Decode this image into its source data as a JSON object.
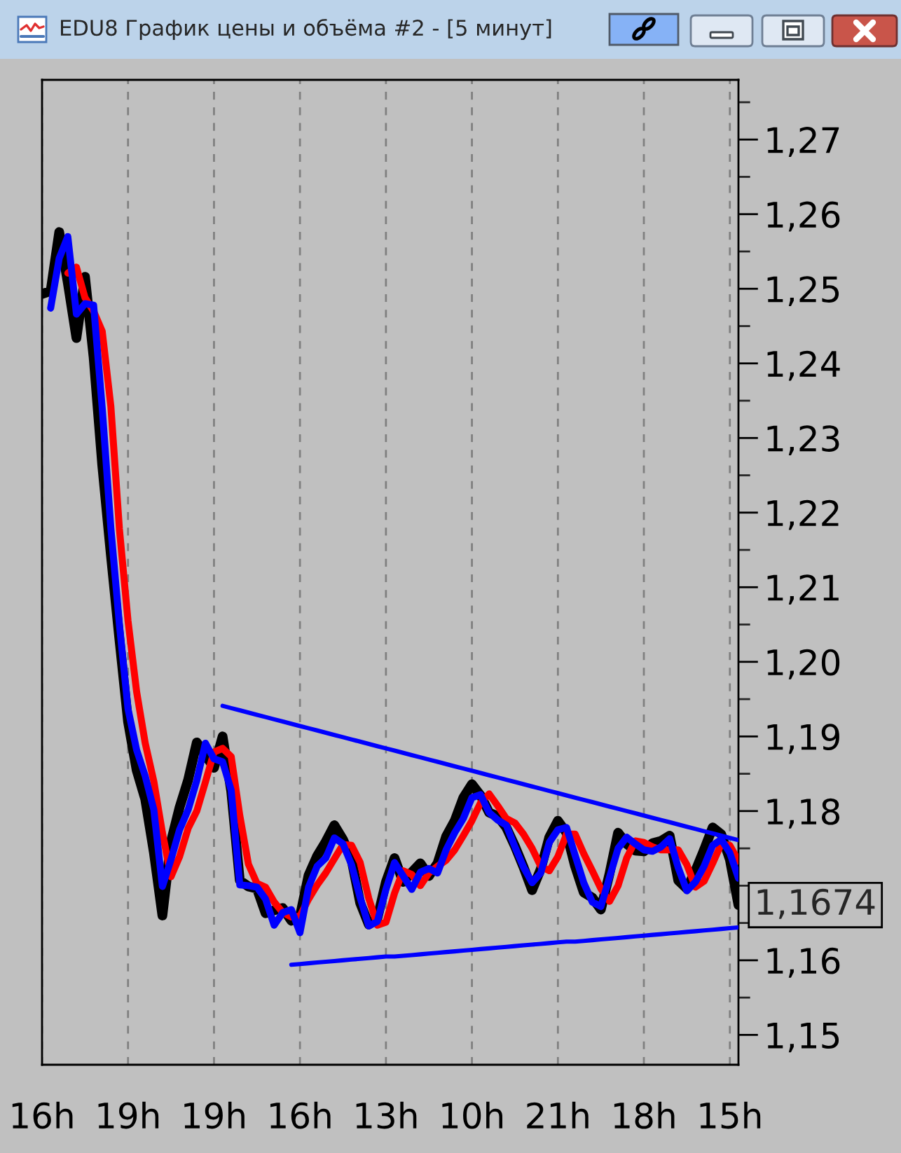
{
  "chart_data": {
    "type": "line",
    "title": "EDU8 График цены и объёма #2 - [5 минут]",
    "categories": [
      "16h",
      null,
      null,
      null,
      null,
      null,
      null,
      null,
      null,
      null,
      "19h",
      null,
      null,
      null,
      null,
      null,
      null,
      null,
      null,
      null,
      "19h",
      null,
      null,
      null,
      null,
      null,
      null,
      null,
      null,
      null,
      "16h",
      null,
      null,
      null,
      null,
      null,
      null,
      null,
      null,
      null,
      "13h",
      null,
      null,
      null,
      null,
      null,
      null,
      null,
      null,
      null,
      "10h",
      null,
      null,
      null,
      null,
      null,
      null,
      null,
      null,
      null,
      "21h",
      null,
      null,
      null,
      null,
      null,
      null,
      null,
      null,
      null,
      "18h",
      null,
      null,
      null,
      null,
      null,
      null,
      null,
      null,
      null,
      "15h",
      null
    ],
    "ylim": [
      1.146,
      1.278
    ],
    "yticks": [
      {
        "value": 1.15,
        "label": "1,15"
      },
      {
        "value": 1.155,
        "label": null
      },
      {
        "value": 1.16,
        "label": "1,16"
      },
      {
        "value": 1.165,
        "label": null
      },
      {
        "value": 1.17,
        "label": null
      },
      {
        "value": 1.175,
        "label": null
      },
      {
        "value": 1.18,
        "label": "1,18"
      },
      {
        "value": 1.185,
        "label": null
      },
      {
        "value": 1.19,
        "label": "1,19"
      },
      {
        "value": 1.195,
        "label": null
      },
      {
        "value": 1.2,
        "label": "1,20"
      },
      {
        "value": 1.205,
        "label": null
      },
      {
        "value": 1.21,
        "label": "1,21"
      },
      {
        "value": 1.215,
        "label": null
      },
      {
        "value": 1.22,
        "label": "1,22"
      },
      {
        "value": 1.225,
        "label": null
      },
      {
        "value": 1.23,
        "label": "1,23"
      },
      {
        "value": 1.235,
        "label": null
      },
      {
        "value": 1.24,
        "label": "1,24"
      },
      {
        "value": 1.245,
        "label": null
      },
      {
        "value": 1.25,
        "label": "1,25"
      },
      {
        "value": 1.255,
        "label": null
      },
      {
        "value": 1.26,
        "label": "1,26"
      },
      {
        "value": 1.265,
        "label": null
      },
      {
        "value": 1.27,
        "label": "1,27"
      },
      {
        "value": 1.275,
        "label": null
      }
    ],
    "grid": "x",
    "annotations": [
      "1,1674"
    ],
    "series": [
      {
        "color": "#000000",
        "values": [
          1.2493,
          1.2497,
          1.2576,
          1.2508,
          1.2434,
          1.2516,
          1.2408,
          1.2264,
          1.2144,
          1.203,
          1.192,
          1.1855,
          1.1816,
          1.1745,
          1.166,
          1.1759,
          1.1805,
          1.1842,
          1.1892,
          1.1875,
          1.1858,
          1.19,
          1.1827,
          1.1707,
          1.1699,
          1.1696,
          1.1663,
          1.1667,
          1.167,
          1.1653,
          1.1659,
          1.1714,
          1.174,
          1.1759,
          1.1781,
          1.1762,
          1.1735,
          1.1677,
          1.1648,
          1.1656,
          1.1705,
          1.1737,
          1.1705,
          1.1718,
          1.173,
          1.1713,
          1.173,
          1.1766,
          1.1787,
          1.1818,
          1.1836,
          1.1821,
          1.1798,
          1.1793,
          1.1778,
          1.1753,
          1.1725,
          1.1694,
          1.1722,
          1.1765,
          1.1787,
          1.1771,
          1.1726,
          1.1691,
          1.1684,
          1.1668,
          1.1716,
          1.1771,
          1.1756,
          1.1747,
          1.1746,
          1.1757,
          1.176,
          1.1767,
          1.1707,
          1.1696,
          1.172,
          1.1748,
          1.1778,
          1.1769,
          1.1735,
          1.1674
        ]
      },
      {
        "color": "#ff0000",
        "values": [
          null,
          null,
          null,
          1.2521,
          1.2529,
          1.2488,
          1.247,
          1.2443,
          1.2343,
          1.2178,
          1.2055,
          1.196,
          1.1891,
          1.184,
          1.1771,
          1.1712,
          1.1739,
          1.1777,
          1.18,
          1.1839,
          1.1879,
          1.1884,
          1.1873,
          1.1794,
          1.1729,
          1.1703,
          1.1698,
          1.1678,
          1.1664,
          1.1658,
          1.1659,
          1.1682,
          1.1701,
          1.1717,
          1.1736,
          1.1755,
          1.1754,
          1.1731,
          1.1683,
          1.1647,
          1.1651,
          1.169,
          1.172,
          1.1715,
          1.17,
          1.1717,
          1.1726,
          1.1734,
          1.1748,
          1.1767,
          1.1787,
          1.1811,
          1.1823,
          1.1807,
          1.179,
          1.1784,
          1.1769,
          1.175,
          1.1726,
          1.172,
          1.1739,
          1.1769,
          1.1769,
          1.1743,
          1.172,
          1.1696,
          1.1679,
          1.17,
          1.1737,
          1.176,
          1.1758,
          1.1752,
          1.1748,
          1.1748,
          1.1748,
          1.1728,
          1.1698,
          1.1706,
          1.173,
          1.1756,
          1.1754,
          1.1733
        ]
      },
      {
        "color": "#0000ff",
        "values": [
          null,
          1.2474,
          1.2541,
          1.257,
          1.2466,
          1.248,
          1.2478,
          1.234,
          1.218,
          1.205,
          1.1937,
          1.1882,
          1.1847,
          1.1802,
          1.1699,
          1.1735,
          1.1775,
          1.1802,
          1.1841,
          1.1891,
          1.187,
          1.1866,
          1.1828,
          1.1701,
          1.17,
          1.1698,
          1.1682,
          1.1647,
          1.1664,
          1.1668,
          1.1637,
          1.1698,
          1.1726,
          1.1737,
          1.1764,
          1.1756,
          1.1728,
          1.1684,
          1.1646,
          1.1652,
          1.1695,
          1.1731,
          1.1713,
          1.1695,
          1.1718,
          1.1723,
          1.1717,
          1.1748,
          1.1771,
          1.179,
          1.1818,
          1.1822,
          1.1798,
          1.1788,
          1.1781,
          1.1752,
          1.1725,
          1.1704,
          1.1717,
          1.1758,
          1.1775,
          1.1778,
          1.1741,
          1.1704,
          1.1678,
          1.1672,
          1.1711,
          1.175,
          1.1765,
          1.1756,
          1.1748,
          1.1746,
          1.1752,
          1.1763,
          1.1724,
          1.1693,
          1.1705,
          1.1726,
          1.1754,
          1.1762,
          1.1744,
          1.171
        ]
      },
      {
        "color": "#0000ff",
        "values": [
          null,
          null,
          null,
          null,
          null,
          null,
          null,
          null,
          null,
          null,
          null,
          null,
          null,
          null,
          null,
          null,
          null,
          null,
          null,
          null,
          null,
          1.1941,
          1.1938,
          1.1935,
          1.1932,
          1.1929,
          1.1926,
          1.1923,
          1.192,
          1.1917,
          1.1914,
          1.1911,
          1.1908,
          1.1905,
          1.1902,
          1.1899,
          1.1896,
          1.1893,
          1.189,
          1.1887,
          1.1884,
          1.1881,
          1.1878,
          1.1875,
          1.1872,
          1.1869,
          1.1866,
          1.1863,
          1.186,
          1.1857,
          1.1854,
          1.1851,
          1.1848,
          1.1845,
          1.1842,
          1.1839,
          1.1836,
          1.1833,
          1.183,
          1.1827,
          1.1824,
          1.1821,
          1.1818,
          1.1815,
          1.1812,
          1.1809,
          1.1806,
          1.1803,
          1.18,
          1.1797,
          1.1794,
          1.1791,
          1.1788,
          1.1785,
          1.1782,
          1.1779,
          1.1776,
          1.1773,
          1.177,
          1.1767,
          1.1764,
          1.1761
        ]
      },
      {
        "color": "#0000ff",
        "values": [
          null,
          null,
          null,
          null,
          null,
          null,
          null,
          null,
          null,
          null,
          null,
          null,
          null,
          null,
          null,
          null,
          null,
          null,
          null,
          null,
          null,
          null,
          null,
          null,
          null,
          null,
          null,
          null,
          null,
          1.1594,
          1.1595,
          1.1596,
          1.1597,
          1.1598,
          1.1599,
          1.16,
          1.1601,
          1.1602,
          1.1603,
          1.1604,
          1.1605,
          1.1605,
          1.1606,
          1.1607,
          1.1608,
          1.1609,
          1.161,
          1.1611,
          1.1612,
          1.1613,
          1.1614,
          1.1615,
          1.1616,
          1.1617,
          1.1618,
          1.1619,
          1.162,
          1.1621,
          1.1622,
          1.1623,
          1.1624,
          1.1625,
          1.1625,
          1.1626,
          1.1627,
          1.1628,
          1.1629,
          1.163,
          1.1631,
          1.1632,
          1.1633,
          1.1634,
          1.1635,
          1.1636,
          1.1637,
          1.1638,
          1.1639,
          1.164,
          1.1641,
          1.1642,
          1.1643,
          1.1644
        ]
      }
    ]
  }
}
